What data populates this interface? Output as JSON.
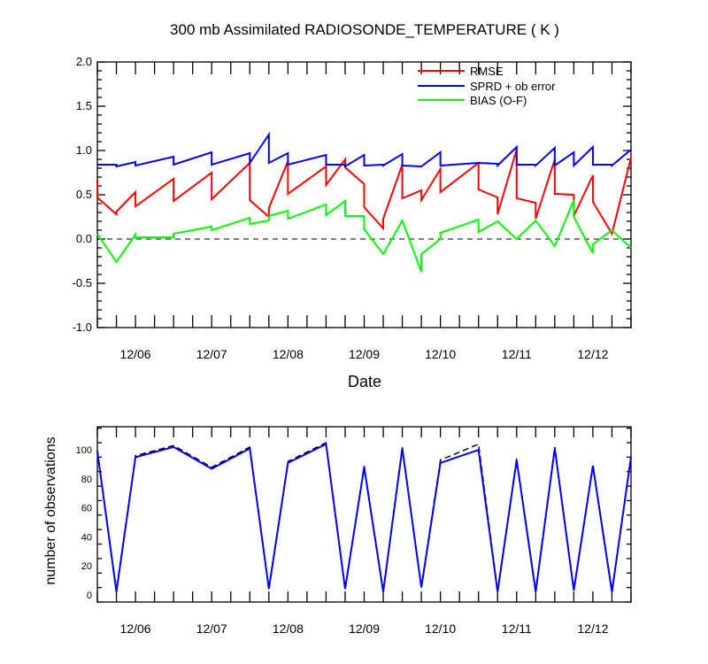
{
  "chart_data": [
    {
      "type": "line",
      "title": "300 mb Assimilated RADIOSONDE_TEMPERATURE ( K )",
      "xlabel": "Date",
      "ylabel": "",
      "ylim": [
        -1.0,
        2.0
      ],
      "yticks": [
        "2.0",
        "1.5",
        "1.0",
        "0.5",
        "0.0",
        "-0.5",
        "-1.0"
      ],
      "yticks_values": [
        2.0,
        1.5,
        1.0,
        0.5,
        0.0,
        -0.5,
        -1.0
      ],
      "xlim": [
        5.5,
        12.5
      ],
      "xticks": [
        "12/06",
        "12/07",
        "12/08",
        "12/09",
        "12/10",
        "12/11",
        "12/12"
      ],
      "xticks_values": [
        6,
        7,
        8,
        9,
        10,
        11,
        12
      ],
      "legend_position": "top-right",
      "reference_line": {
        "y": 0.0,
        "style": "dashed",
        "color": "#000000"
      },
      "series": [
        {
          "name": "RMSE",
          "color": "#ff0000",
          "points": [
            [
              5.5,
              0.67
            ],
            [
              5.5,
              0.47
            ],
            [
              5.75,
              0.28
            ],
            [
              5.75,
              0.31
            ],
            [
              6.0,
              0.53
            ],
            [
              6.0,
              0.37
            ],
            [
              6.5,
              0.68
            ],
            [
              6.5,
              0.43
            ],
            [
              7.0,
              0.75
            ],
            [
              7.0,
              0.45
            ],
            [
              7.5,
              0.86
            ],
            [
              7.5,
              0.44
            ],
            [
              7.75,
              0.25
            ],
            [
              7.75,
              0.35
            ],
            [
              8.0,
              0.88
            ],
            [
              8.0,
              0.51
            ],
            [
              8.5,
              0.82
            ],
            [
              8.5,
              0.61
            ],
            [
              8.75,
              0.9
            ],
            [
              8.75,
              0.81
            ],
            [
              9.0,
              0.62
            ],
            [
              9.0,
              0.36
            ],
            [
              9.25,
              0.12
            ],
            [
              9.25,
              0.23
            ],
            [
              9.5,
              0.84
            ],
            [
              9.5,
              0.46
            ],
            [
              9.75,
              0.55
            ],
            [
              9.75,
              0.44
            ],
            [
              10.0,
              0.79
            ],
            [
              10.0,
              0.53
            ],
            [
              10.5,
              0.86
            ],
            [
              10.5,
              0.56
            ],
            [
              10.75,
              0.47
            ],
            [
              10.75,
              0.28
            ],
            [
              11.0,
              1.01
            ],
            [
              11.0,
              0.46
            ],
            [
              11.25,
              0.41
            ],
            [
              11.25,
              0.23
            ],
            [
              11.5,
              0.9
            ],
            [
              11.5,
              0.51
            ],
            [
              11.75,
              0.5
            ],
            [
              11.75,
              0.26
            ],
            [
              12.0,
              0.72
            ],
            [
              12.0,
              0.42
            ],
            [
              12.25,
              0.06
            ],
            [
              12.5,
              0.92
            ]
          ]
        },
        {
          "name": "SPRD + ob error",
          "color": "#0000ff",
          "points": [
            [
              5.5,
              0.84
            ],
            [
              5.75,
              0.84
            ],
            [
              5.75,
              0.82
            ],
            [
              6.0,
              0.87
            ],
            [
              6.0,
              0.83
            ],
            [
              6.5,
              0.93
            ],
            [
              6.5,
              0.84
            ],
            [
              7.0,
              0.98
            ],
            [
              7.0,
              0.84
            ],
            [
              7.5,
              0.97
            ],
            [
              7.5,
              0.86
            ],
            [
              7.75,
              1.18
            ],
            [
              7.75,
              0.86
            ],
            [
              8.0,
              0.97
            ],
            [
              8.0,
              0.84
            ],
            [
              8.5,
              0.95
            ],
            [
              8.5,
              0.84
            ],
            [
              8.75,
              0.84
            ],
            [
              8.75,
              0.82
            ],
            [
              9.0,
              0.95
            ],
            [
              9.0,
              0.83
            ],
            [
              9.25,
              0.84
            ],
            [
              9.25,
              0.83
            ],
            [
              9.5,
              0.96
            ],
            [
              9.5,
              0.83
            ],
            [
              9.75,
              0.82
            ],
            [
              10.0,
              0.98
            ],
            [
              10.0,
              0.83
            ],
            [
              10.5,
              0.86
            ],
            [
              10.75,
              0.85
            ],
            [
              10.75,
              0.83
            ],
            [
              11.0,
              1.04
            ],
            [
              11.0,
              0.84
            ],
            [
              11.25,
              0.84
            ],
            [
              11.25,
              0.83
            ],
            [
              11.5,
              1.03
            ],
            [
              11.5,
              0.83
            ],
            [
              11.75,
              0.98
            ],
            [
              11.75,
              0.83
            ],
            [
              12.0,
              1.04
            ],
            [
              12.0,
              0.84
            ],
            [
              12.25,
              0.84
            ],
            [
              12.25,
              0.83
            ],
            [
              12.5,
              1.01
            ]
          ]
        },
        {
          "name": "BIAS (O-F)",
          "color": "#00ff00",
          "points": [
            [
              5.5,
              0.06
            ],
            [
              5.75,
              -0.26
            ],
            [
              6.0,
              0.05
            ],
            [
              6.0,
              0.02
            ],
            [
              6.5,
              0.02
            ],
            [
              6.5,
              0.06
            ],
            [
              7.0,
              0.14
            ],
            [
              7.0,
              0.1
            ],
            [
              7.5,
              0.24
            ],
            [
              7.5,
              0.17
            ],
            [
              7.75,
              0.21
            ],
            [
              7.75,
              0.26
            ],
            [
              8.0,
              0.32
            ],
            [
              8.0,
              0.23
            ],
            [
              8.5,
              0.39
            ],
            [
              8.5,
              0.27
            ],
            [
              8.75,
              0.43
            ],
            [
              8.75,
              0.26
            ],
            [
              9.0,
              0.26
            ],
            [
              9.0,
              0.11
            ],
            [
              9.25,
              -0.17
            ],
            [
              9.5,
              0.21
            ],
            [
              9.75,
              -0.37
            ],
            [
              9.75,
              -0.17
            ],
            [
              10.0,
              0.0
            ],
            [
              10.0,
              0.07
            ],
            [
              10.5,
              0.22
            ],
            [
              10.5,
              0.08
            ],
            [
              10.75,
              0.2
            ],
            [
              11.0,
              0.0
            ],
            [
              11.25,
              0.21
            ],
            [
              11.5,
              -0.08
            ],
            [
              11.75,
              0.44
            ],
            [
              11.75,
              0.25
            ],
            [
              12.0,
              -0.16
            ],
            [
              12.0,
              -0.06
            ],
            [
              12.25,
              0.1
            ],
            [
              12.5,
              -0.1
            ]
          ]
        }
      ]
    },
    {
      "type": "line",
      "title": "",
      "xlabel": "",
      "ylabel": "number of observations",
      "ylim": [
        -5,
        116
      ],
      "yticks": [
        "100",
        "80",
        "60",
        "40",
        "20",
        "0"
      ],
      "yticks_values": [
        100,
        80,
        60,
        40,
        20,
        0
      ],
      "xlim": [
        5.5,
        12.5
      ],
      "xticks": [
        "12/06",
        "12/07",
        "12/08",
        "12/09",
        "12/10",
        "12/11",
        "12/12"
      ],
      "xticks_values": [
        6,
        7,
        8,
        9,
        10,
        11,
        12
      ],
      "series": [
        {
          "color": "#000000",
          "style": "dashed",
          "points": [
            [
              5.5,
              100
            ],
            [
              5.75,
              3
            ],
            [
              6.0,
              96
            ],
            [
              6.5,
              103
            ],
            [
              7.0,
              88
            ],
            [
              7.5,
              102
            ],
            [
              7.75,
              5
            ],
            [
              8.0,
              92
            ],
            [
              8.5,
              105
            ],
            [
              8.75,
              5
            ],
            [
              9.0,
              89
            ],
            [
              9.25,
              3
            ],
            [
              9.5,
              102
            ],
            [
              9.75,
              6
            ],
            [
              10.0,
              93
            ],
            [
              10.5,
              104
            ],
            [
              10.75,
              3
            ],
            [
              11.0,
              94
            ],
            [
              11.25,
              3
            ],
            [
              11.5,
              102
            ],
            [
              11.75,
              4
            ],
            [
              12.0,
              90
            ],
            [
              12.25,
              3
            ],
            [
              12.5,
              96
            ]
          ]
        },
        {
          "color": "#0000ff",
          "style": "solid",
          "points": [
            [
              5.5,
              99
            ],
            [
              5.75,
              2
            ],
            [
              6.0,
              95
            ],
            [
              6.5,
              102
            ],
            [
              7.0,
              87
            ],
            [
              7.5,
              101
            ],
            [
              7.75,
              4
            ],
            [
              8.0,
              91
            ],
            [
              8.5,
              104
            ],
            [
              8.75,
              4
            ],
            [
              9.0,
              88
            ],
            [
              9.25,
              2
            ],
            [
              9.5,
              101
            ],
            [
              9.75,
              5
            ],
            [
              10.0,
              91
            ],
            [
              10.5,
              100
            ],
            [
              10.75,
              2
            ],
            [
              11.0,
              93
            ],
            [
              11.25,
              2
            ],
            [
              11.5,
              101
            ],
            [
              11.75,
              3
            ],
            [
              12.0,
              89
            ],
            [
              12.25,
              2
            ],
            [
              12.5,
              95
            ]
          ]
        }
      ]
    }
  ]
}
